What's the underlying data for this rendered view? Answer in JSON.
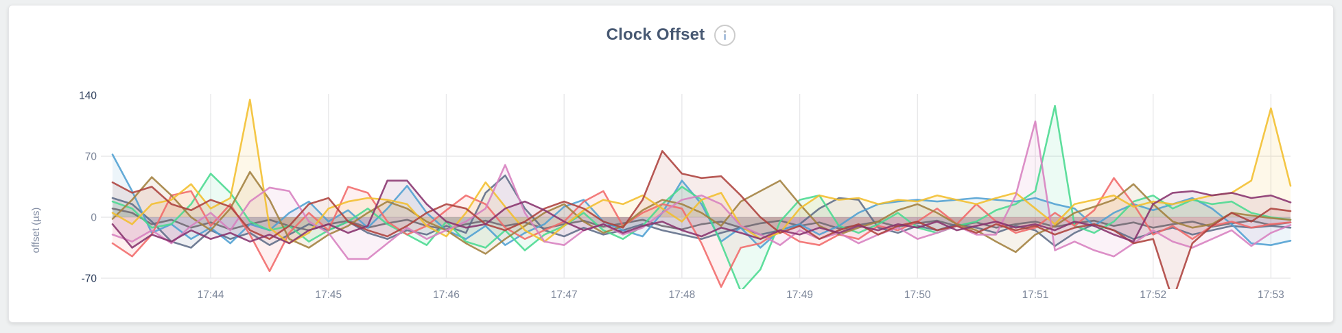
{
  "panel": {
    "title": "Clock Offset",
    "info_icon": "info-icon"
  },
  "colors": {
    "page_bg": "#eef0f1",
    "card_bg": "#ffffff",
    "card_border": "#e4e5e7",
    "title": "#475872",
    "axis_label": "#7e89a0",
    "tick_label": "#7c8699",
    "tick_label_extreme": "#2e3f5c",
    "gridline": "#e8e8ea"
  },
  "chart_data": {
    "type": "line",
    "title": "Clock Offset",
    "xlabel": "",
    "ylabel": "offset (µs)",
    "ylim": [
      -70,
      140
    ],
    "y_ticks": [
      140,
      70,
      0,
      -70
    ],
    "x_ticks": [
      "17:44",
      "17:45",
      "17:46",
      "17:47",
      "17:48",
      "17:49",
      "17:50",
      "17:51",
      "17:52",
      "17:53"
    ],
    "x_start": "17:43:10",
    "x_interval_seconds": 10,
    "grid": true,
    "legend_position": "none",
    "area_fill_opacity": 0.1,
    "series": [
      {
        "name": "grey",
        "color": "#706972",
        "values": [
          10,
          5,
          -8,
          -3,
          -12,
          -6,
          -14,
          -8,
          -3,
          -10,
          -15,
          -8,
          -4,
          -12,
          -7,
          -3,
          -10,
          -14,
          -8,
          -4,
          -10,
          -6,
          -13,
          -8,
          -4,
          -11,
          -7,
          -3,
          -10,
          -14,
          -8,
          -5,
          -12,
          -7,
          -4,
          -10,
          -6,
          -13,
          -9,
          -5,
          -11,
          -7,
          -4,
          -10,
          -6,
          -12,
          -8,
          -5,
          -11,
          -7,
          -4,
          -10,
          -6,
          -12,
          -8,
          -5,
          -11,
          -7,
          -4,
          -9,
          -6
        ]
      },
      {
        "name": "slate",
        "color": "#5F6C87",
        "values": [
          22,
          15,
          -5,
          -28,
          -35,
          -15,
          -25,
          -18,
          -32,
          -20,
          -8,
          -15,
          -5,
          -18,
          -25,
          -15,
          -20,
          -10,
          -18,
          28,
          48,
          10,
          -15,
          -22,
          -12,
          -20,
          -15,
          -8,
          -15,
          -20,
          -25,
          -18,
          -12,
          -20,
          -15,
          -8,
          10,
          22,
          20,
          -12,
          -18,
          -10,
          -15,
          -8,
          -12,
          -18,
          -10,
          -15,
          -33,
          -18,
          -8,
          -15,
          -25,
          -18,
          -12,
          -20,
          -15,
          -10,
          -12,
          -10,
          -12
        ]
      },
      {
        "name": "blue",
        "color": "#4E9FD1",
        "values": [
          72,
          30,
          -18,
          -8,
          -25,
          -12,
          -30,
          -8,
          -15,
          5,
          18,
          -5,
          8,
          -12,
          10,
          36,
          5,
          -15,
          -25,
          -10,
          -32,
          -18,
          -8,
          12,
          20,
          -5,
          -15,
          -22,
          5,
          42,
          15,
          -28,
          -12,
          -35,
          -15,
          -8,
          -20,
          -10,
          5,
          15,
          18,
          20,
          18,
          20,
          22,
          20,
          18,
          22,
          15,
          10,
          -10,
          5,
          15,
          8,
          15,
          22,
          10,
          -8,
          -30,
          -32,
          -27
        ]
      },
      {
        "name": "green",
        "color": "#49D990",
        "values": [
          18,
          10,
          -12,
          -8,
          15,
          50,
          28,
          -5,
          -15,
          -10,
          -28,
          -15,
          -5,
          10,
          -8,
          -20,
          -32,
          -5,
          -28,
          -35,
          -15,
          -38,
          -20,
          -10,
          5,
          -15,
          -25,
          -10,
          15,
          35,
          20,
          -30,
          -85,
          -60,
          -5,
          20,
          25,
          -10,
          -18,
          -8,
          5,
          -12,
          -18,
          -10,
          -5,
          8,
          15,
          30,
          128,
          -10,
          -18,
          -5,
          18,
          25,
          10,
          20,
          15,
          18,
          5,
          0,
          -3
        ]
      },
      {
        "name": "salmon",
        "color": "#F16969",
        "values": [
          -30,
          -45,
          -20,
          25,
          30,
          -10,
          15,
          -20,
          -62,
          -18,
          5,
          -15,
          35,
          28,
          -5,
          -20,
          -10,
          8,
          25,
          15,
          -12,
          -25,
          -15,
          -5,
          18,
          30,
          -10,
          5,
          15,
          10,
          -30,
          -80,
          -35,
          -30,
          -15,
          -28,
          -32,
          -20,
          -25,
          -10,
          -15,
          -5,
          10,
          -8,
          15,
          -5,
          -18,
          -12,
          5,
          -10,
          8,
          45,
          15,
          -20,
          -10,
          -25,
          -10,
          -5,
          -12,
          -8,
          -6
        ]
      },
      {
        "name": "olive",
        "color": "#A27F3D",
        "values": [
          -2,
          20,
          46,
          25,
          0,
          -15,
          10,
          52,
          20,
          -25,
          -35,
          -20,
          -10,
          5,
          18,
          10,
          -5,
          -15,
          -30,
          -42,
          -25,
          -10,
          5,
          15,
          -5,
          -18,
          -10,
          8,
          20,
          15,
          5,
          -10,
          18,
          30,
          42,
          15,
          -10,
          -20,
          -12,
          -5,
          8,
          15,
          5,
          -8,
          -15,
          -28,
          -40,
          -20,
          -10,
          5,
          12,
          20,
          38,
          15,
          -5,
          -12,
          -8,
          5,
          2,
          -1,
          -3
        ]
      },
      {
        "name": "gold",
        "color": "#F2BE2C",
        "values": [
          5,
          -8,
          15,
          20,
          38,
          10,
          22,
          135,
          -12,
          -30,
          -18,
          10,
          18,
          22,
          20,
          15,
          -10,
          -22,
          5,
          40,
          12,
          -15,
          -28,
          -10,
          8,
          20,
          15,
          25,
          10,
          -5,
          20,
          28,
          -10,
          -25,
          -18,
          10,
          25,
          20,
          22,
          15,
          20,
          18,
          25,
          20,
          15,
          22,
          28,
          10,
          -8,
          15,
          20,
          25,
          12,
          18,
          15,
          20,
          25,
          28,
          42,
          125,
          36
        ]
      },
      {
        "name": "orchid",
        "color": "#D77FBF",
        "values": [
          -20,
          -28,
          -15,
          -30,
          -10,
          5,
          -15,
          18,
          34,
          30,
          -5,
          -18,
          -48,
          -48,
          -30,
          -12,
          -25,
          -15,
          -5,
          10,
          60,
          5,
          -28,
          -32,
          -15,
          -8,
          -20,
          -12,
          5,
          20,
          25,
          15,
          -10,
          -20,
          -32,
          -15,
          -25,
          -18,
          -30,
          -20,
          -12,
          -25,
          -18,
          -10,
          -20,
          -20,
          25,
          110,
          -38,
          -28,
          -38,
          -45,
          -30,
          -15,
          -28,
          -35,
          -25,
          -15,
          -33,
          -18,
          -9
        ]
      },
      {
        "name": "wine",
        "color": "#AD413C",
        "values": [
          40,
          28,
          35,
          15,
          8,
          20,
          12,
          -15,
          -25,
          -10,
          15,
          22,
          -5,
          -15,
          -22,
          -10,
          5,
          15,
          10,
          -8,
          -15,
          -5,
          10,
          18,
          10,
          -5,
          -12,
          20,
          76,
          50,
          45,
          47,
          25,
          0,
          -18,
          -10,
          -25,
          -15,
          -8,
          -20,
          -10,
          -5,
          -15,
          -10,
          -18,
          -8,
          -15,
          -10,
          -20,
          -12,
          -8,
          -15,
          -30,
          -25,
          -95,
          -30,
          -10,
          5,
          -5,
          10,
          7
        ]
      },
      {
        "name": "plum",
        "color": "#87326D",
        "values": [
          -8,
          -35,
          -20,
          -28,
          -15,
          -25,
          -18,
          -28,
          -20,
          -30,
          -15,
          -8,
          -18,
          -10,
          42,
          42,
          15,
          -5,
          -12,
          -8,
          10,
          18,
          8,
          -5,
          -15,
          -8,
          -18,
          -10,
          -5,
          -15,
          -22,
          -12,
          -18,
          -25,
          -15,
          -20,
          -12,
          -18,
          -10,
          -15,
          -8,
          -12,
          -5,
          -15,
          -10,
          -5,
          -12,
          -8,
          -15,
          -5,
          -10,
          -20,
          -28,
          15,
          28,
          30,
          25,
          28,
          22,
          25,
          17
        ]
      }
    ]
  }
}
